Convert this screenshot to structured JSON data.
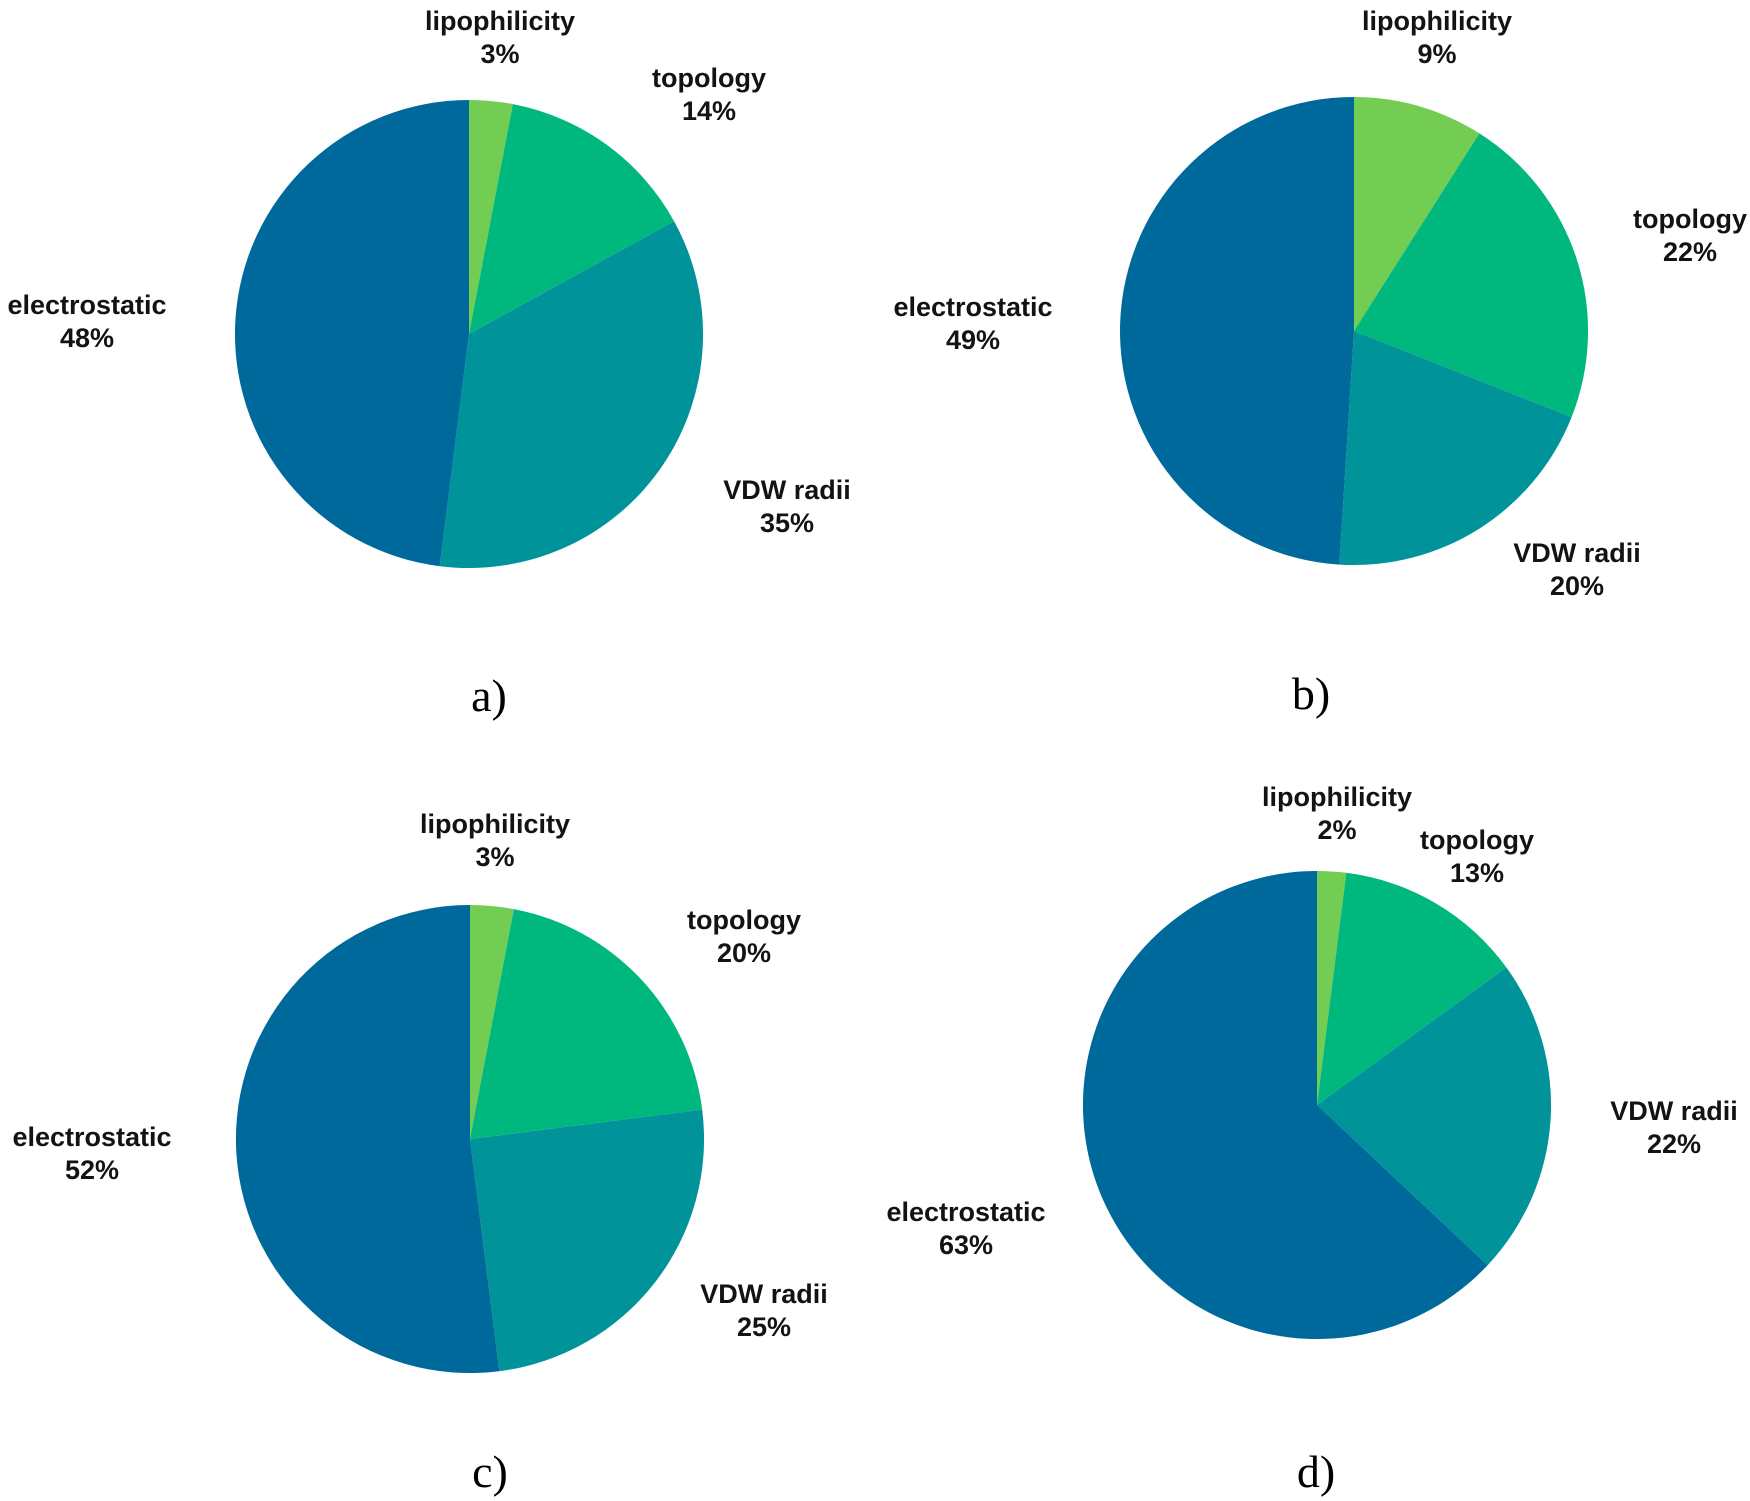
{
  "figure": {
    "background": "#ffffff",
    "text_color": "#131313",
    "description_categories": [
      "lipophilicity",
      "topology",
      "VDW radii",
      "electrostatic"
    ]
  },
  "palette": {
    "lipophilicity": "#72CD52",
    "topology": "#00B87E",
    "vdw_radii": "#00939A",
    "electrostatic": "#00699C"
  },
  "chart_data": [
    {
      "type": "pie",
      "panel_letter": "a)",
      "start_angle_deg": 0,
      "direction": "clockwise",
      "legend_position": "labels-around-pie",
      "slices": [
        {
          "key": "lipophilicity",
          "name": "lipophilicity",
          "value": 3,
          "display": "3%"
        },
        {
          "key": "topology",
          "name": "topology",
          "value": 14,
          "display": "14%"
        },
        {
          "key": "vdw_radii",
          "name": "VDW radii",
          "value": 35,
          "display": "35%"
        },
        {
          "key": "electrostatic",
          "name": "electrostatic",
          "value": 48,
          "display": "48%"
        }
      ]
    },
    {
      "type": "pie",
      "panel_letter": "b)",
      "start_angle_deg": 0,
      "direction": "clockwise",
      "legend_position": "labels-around-pie",
      "slices": [
        {
          "key": "lipophilicity",
          "name": "lipophilicity",
          "value": 9,
          "display": "9%"
        },
        {
          "key": "topology",
          "name": "topology",
          "value": 22,
          "display": "22%"
        },
        {
          "key": "vdw_radii",
          "name": "VDW radii",
          "value": 20,
          "display": "20%"
        },
        {
          "key": "electrostatic",
          "name": "electrostatic",
          "value": 49,
          "display": "49%"
        }
      ]
    },
    {
      "type": "pie",
      "panel_letter": "c)",
      "start_angle_deg": 0,
      "direction": "clockwise",
      "legend_position": "labels-around-pie",
      "slices": [
        {
          "key": "lipophilicity",
          "name": "lipophilicity",
          "value": 3,
          "display": "3%"
        },
        {
          "key": "topology",
          "name": "topology",
          "value": 20,
          "display": "20%"
        },
        {
          "key": "vdw_radii",
          "name": "VDW radii",
          "value": 25,
          "display": "25%"
        },
        {
          "key": "electrostatic",
          "name": "electrostatic",
          "value": 52,
          "display": "52%"
        }
      ]
    },
    {
      "type": "pie",
      "panel_letter": "d)",
      "start_angle_deg": 0,
      "direction": "clockwise",
      "legend_position": "labels-around-pie",
      "slices": [
        {
          "key": "lipophilicity",
          "name": "lipophilicity",
          "value": 2,
          "display": "2%"
        },
        {
          "key": "topology",
          "name": "topology",
          "value": 13,
          "display": "13%"
        },
        {
          "key": "vdw_radii",
          "name": "VDW radii",
          "value": 22,
          "display": "22%"
        },
        {
          "key": "electrostatic",
          "name": "electrostatic",
          "value": 63,
          "display": "63%"
        }
      ]
    }
  ]
}
